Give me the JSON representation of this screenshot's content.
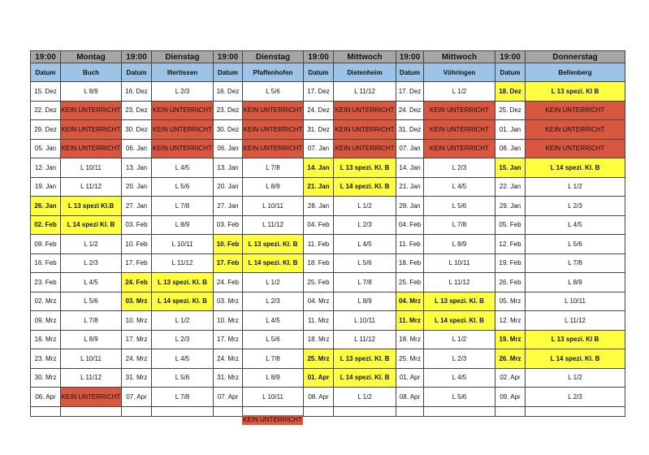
{
  "table": {
    "header": [
      "19:00",
      "Montag",
      "19:00",
      "Dienstag",
      "19:00",
      "Dienstag",
      "19:00",
      "Mittwoch",
      "19:00",
      "Mittwoch",
      "19:00",
      "Donnerstag"
    ],
    "subheader": [
      "Datum",
      "Buch",
      "Datum",
      "Illertissen",
      "Datum",
      "Pfaffenhofen",
      "Datum",
      "Dietenheim",
      "Datum",
      "Vöhringen",
      "Datum",
      "Bellenberg"
    ],
    "header_fill": "#a6a6a6",
    "subheader_fill": "#9dc3e6",
    "rows": [
      [
        "15. Dez",
        "L 8/9",
        "16. Dez",
        "L 2/3",
        "16. Dez",
        "L 5/6",
        "17. Dez",
        "L 11/12",
        "17. Dez",
        "L 1/2",
        {
          "text": "18. Dez",
          "fill": "#ffff40"
        },
        {
          "text": "L 13 spezi. Kl B",
          "fill": "#ffff40"
        }
      ],
      [
        "22. Dez",
        {
          "text": "KEIN UNTERRICHT",
          "fill": "#d9573f"
        },
        "23. Dez",
        {
          "text": "KEIN UNTERRICHT",
          "fill": "#d9573f"
        },
        "23. Dez",
        {
          "text": "KEIN UNTERRICHT",
          "fill": "#d9573f"
        },
        "24. Dez",
        {
          "text": "KEIN UNTERRICHT",
          "fill": "#d9573f"
        },
        "24. Dez",
        {
          "text": "KEIN UNTERRICHT",
          "fill": "#d9573f"
        },
        "25. Dez",
        {
          "text": "KEIN UNTERRICHT",
          "fill": "#d9573f"
        }
      ],
      [
        "29. Dez",
        {
          "text": "KEIN UNTERRICHT",
          "fill": "#d9573f"
        },
        "30. Dez",
        {
          "text": "KEIN UNTERRICHT",
          "fill": "#d9573f"
        },
        "30. Dez",
        {
          "text": "KEIN UNTERRICHT",
          "fill": "#d9573f"
        },
        "31. Dez",
        {
          "text": "KEIN UNTERRICHT",
          "fill": "#d9573f"
        },
        "31. Dez",
        {
          "text": "KEIN UNTERRICHT",
          "fill": "#d9573f"
        },
        "01. Jan",
        {
          "text": "KEIN UNTERRICHT",
          "fill": "#d9573f"
        }
      ],
      [
        "05. Jan",
        {
          "text": "KEIN UNTERRICHT",
          "fill": "#d9573f"
        },
        "06. Jan",
        {
          "text": "KEIN UNTERRICHT",
          "fill": "#d9573f"
        },
        "06. Jan",
        {
          "text": "KEIN UNTERRICHT",
          "fill": "#d9573f"
        },
        "07. Jan",
        {
          "text": "KEIN UNTERRICHT",
          "fill": "#d9573f"
        },
        "07. Jan",
        {
          "text": "KEIN UNTERRICHT",
          "fill": "#d9573f"
        },
        "08. Jan",
        {
          "text": "KEIN UNTERRICHT",
          "fill": "#d9573f"
        }
      ],
      [
        "12. Jan",
        "L 10/11",
        "13. Jan",
        "L 4/5",
        "13. Jan",
        "L 7/8",
        {
          "text": "14. Jan",
          "fill": "#ffff40"
        },
        {
          "text": "L 13 spezi. Kl. B",
          "fill": "#ffff40"
        },
        "14. Jan",
        "L 2/3",
        {
          "text": "15. Jan",
          "fill": "#ffff40"
        },
        {
          "text": "L 14 spezi. Kl. B",
          "fill": "#ffff40"
        }
      ],
      [
        "19. Jan",
        "L 11/12",
        "20. Jan",
        "L 5/6",
        "20. Jan",
        "L 8/9",
        {
          "text": "21. Jan",
          "fill": "#ffff40"
        },
        {
          "text": "L 14 spezi. Kl. B",
          "fill": "#ffff40"
        },
        "21. Jan",
        "L 4/5",
        "22. Jan",
        "L 1/2"
      ],
      [
        {
          "text": "26. Jan",
          "fill": "#ffff40"
        },
        {
          "text": "L 13 spezi Kl.B",
          "fill": "#ffff40"
        },
        "27. Jan",
        "L 7/8",
        "27. Jan",
        "L 10/11",
        "28. Jan",
        "L 1/2",
        "28. Jan",
        "L 5/6",
        "29. Jan",
        "L 2/3"
      ],
      [
        {
          "text": "02. Feb",
          "fill": "#ffff40"
        },
        {
          "text": "L 14 spezi Kl. B",
          "fill": "#ffff40"
        },
        "03. Feb",
        "L 8/9",
        "03. Feb",
        "L 11/12",
        "04. Feb",
        "L 2/3",
        "04. Feb",
        "L 7/8",
        "05. Feb",
        "L 4/5"
      ],
      [
        "09. Feb",
        "L 1/2",
        "10. Feb",
        "L 10/11",
        {
          "text": "10. Feb",
          "fill": "#ffff40"
        },
        {
          "text": "L 13 spezi. Kl. B",
          "fill": "#ffff40"
        },
        "11. Feb",
        "L 4/5",
        "11. Feb",
        "L 8/9",
        "12. Feb",
        "L 5/6"
      ],
      [
        "16. Feb",
        "L 2/3",
        "17. Feb",
        "L 11/12",
        {
          "text": "17. Feb",
          "fill": "#ffff40"
        },
        {
          "text": "L 14 spezi. Kl. B",
          "fill": "#ffff40"
        },
        "18. Feb",
        "L 5/6",
        "18. Feb",
        "L 10/11",
        "19. Feb",
        "L 7/8"
      ],
      [
        "23. Feb",
        "L 4/5",
        {
          "text": "24. Feb",
          "fill": "#ffff40"
        },
        {
          "text": "L 13 spezi. Kl. B",
          "fill": "#ffff40"
        },
        "24. Feb",
        "L 1/2",
        "25. Feb",
        "L 7/8",
        "25. Feb",
        "L 11/12",
        "26. Feb",
        "L 8/9"
      ],
      [
        "02. Mrz",
        "L 5/6",
        {
          "text": "03. Mrz",
          "fill": "#ffff40"
        },
        {
          "text": "L 14 spezi. Kl. B",
          "fill": "#ffff40"
        },
        "03. Mrz",
        "L 2/3",
        "04. Mrz",
        "L 8/9",
        {
          "text": "04. Mrz",
          "fill": "#ffff40"
        },
        {
          "text": "L 13 spezi. Kl. B",
          "fill": "#ffff40"
        },
        "05. Mrz",
        "L 10/11"
      ],
      [
        "09. Mrz",
        "L 7/8",
        "10. Mrz",
        "L 1/2",
        "10. Mrz",
        "L 4/5",
        "11. Mrz",
        "L 10/11",
        {
          "text": "11. Mrz",
          "fill": "#ffff40"
        },
        {
          "text": "L 14 spezi. Kl. B",
          "fill": "#ffff40"
        },
        "12. Mrz",
        "L 11/12"
      ],
      [
        "16. Mrz",
        "L 8/9",
        "17. Mrz",
        "L 2/3",
        "17. Mrz",
        "L 5/6",
        "18. Mrz",
        "L 11/12",
        "18. Mrz",
        "L 1/2",
        {
          "text": "19. Mrz",
          "fill": "#ffff40"
        },
        {
          "text": "L 13 spezi. Kl B",
          "fill": "#ffff40"
        }
      ],
      [
        "23. Mrz",
        "L 10/11",
        "24. Mrz",
        "L 4/5",
        "24. Mrz",
        "L 7/8",
        {
          "text": "25. Mrz",
          "fill": "#ffff40"
        },
        {
          "text": "L 13 spezi. Kl. B",
          "fill": "#ffff40"
        },
        "25. Mrz",
        "L 2/3",
        {
          "text": "26. Mrz",
          "fill": "#ffff40"
        },
        {
          "text": "L 14 spezi. Kl. B",
          "fill": "#ffff40"
        }
      ],
      [
        "30. Mrz",
        "L 11/12",
        "31. Mrz",
        "L 5/6",
        "31. Mrz",
        "L 8/9",
        {
          "text": "01. Apr",
          "fill": "#ffff40"
        },
        {
          "text": "L 14 spezi. Kl. B",
          "fill": "#ffff40"
        },
        "01. Apr",
        "L 4/5",
        "02. Apr",
        "L 1/2"
      ],
      [
        "06. Apr",
        {
          "text": "KEIN UNTERRICHT",
          "fill": "#d9573f"
        },
        "07. Apr",
        "L 7/8",
        "07. Apr",
        "L 10/11",
        "08. Apr",
        "L 1/2",
        "08. Apr",
        "L 5/6",
        "09. Apr",
        "L 2/3"
      ]
    ],
    "footnote": {
      "text": "KEIN UNTERRICHT",
      "fill": "#d9573f"
    }
  }
}
